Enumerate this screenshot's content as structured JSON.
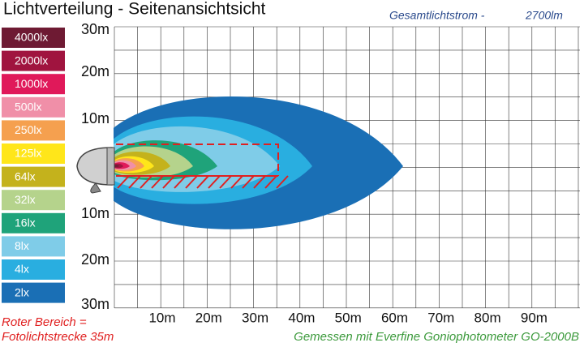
{
  "header": {
    "title": "Lichtverteilung - Seitenansichtsicht",
    "flux_label": "Gesamtlichtstrom  -",
    "flux_value": "2700lm"
  },
  "legend": [
    {
      "label": "4000lx",
      "color": "#6e1a33"
    },
    {
      "label": "2000lx",
      "color": "#a0143f"
    },
    {
      "label": "1000lx",
      "color": "#e0195a"
    },
    {
      "label": "500lx",
      "color": "#f08fa8"
    },
    {
      "label": "250lx",
      "color": "#f5a04f"
    },
    {
      "label": "125lx",
      "color": "#ffe61a"
    },
    {
      "label": "64lx",
      "color": "#c4b21c"
    },
    {
      "label": "32lx",
      "color": "#b5d38c"
    },
    {
      "label": "16lx",
      "color": "#1fa37a"
    },
    {
      "label": "8lx",
      "color": "#7fcce8"
    },
    {
      "label": "4lx",
      "color": "#29aee0"
    },
    {
      "label": "2lx",
      "color": "#1a6fb5"
    }
  ],
  "axes": {
    "y_labels": [
      "30m",
      "20m",
      "10m",
      "10m",
      "20m",
      "30m"
    ],
    "x_labels": [
      "10m",
      "20m",
      "30m",
      "40m",
      "50m",
      "60m",
      "70m",
      "80m",
      "90m"
    ]
  },
  "notes": {
    "red_area": [
      "Roter Bereich =",
      "Fotolichtstrecke 35m"
    ],
    "measurement": "Gemessen mit Everfine Goniophotometer GO-2000B"
  }
}
